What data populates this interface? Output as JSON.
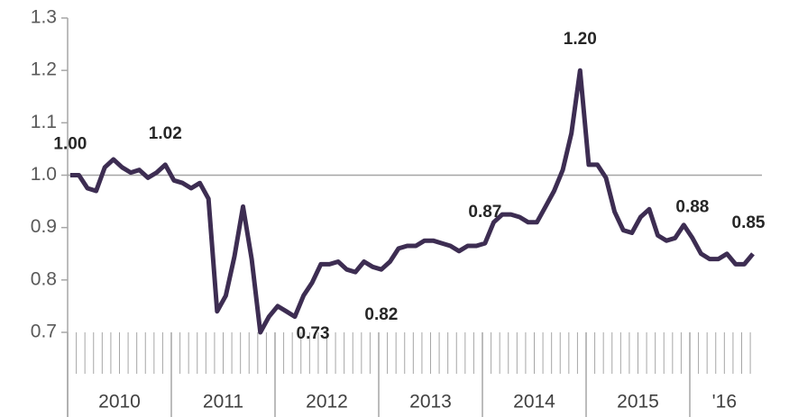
{
  "chart_data": {
    "type": "line",
    "color": "#3d2d52",
    "categories": [
      "2010",
      "2011",
      "2012",
      "2013",
      "2014",
      "2015",
      "'16"
    ],
    "values": [
      [
        1.0,
        1.0,
        0.975,
        0.97,
        1.015,
        1.03,
        1.015,
        1.005,
        1.01,
        0.995,
        1.005,
        1.02
      ],
      [
        0.99,
        0.985,
        0.975,
        0.985,
        0.955,
        0.74,
        0.77,
        0.845,
        0.94,
        0.84,
        0.7,
        0.73
      ],
      [
        0.75,
        0.74,
        0.73,
        0.77,
        0.795,
        0.83,
        0.83,
        0.835,
        0.82,
        0.815,
        0.835,
        0.825
      ],
      [
        0.82,
        0.835,
        0.86,
        0.865,
        0.865,
        0.875,
        0.875,
        0.87,
        0.865,
        0.855,
        0.865,
        0.865
      ],
      [
        0.87,
        0.91,
        0.925,
        0.925,
        0.92,
        0.91,
        0.91,
        0.94,
        0.97,
        1.01,
        1.08,
        1.2
      ],
      [
        1.02,
        1.02,
        0.995,
        0.93,
        0.895,
        0.89,
        0.92,
        0.935,
        0.885,
        0.875,
        0.88,
        0.905
      ],
      [
        0.88,
        0.85,
        0.84,
        0.84,
        0.85,
        0.83,
        0.83,
        0.85
      ]
    ],
    "value_labels": [
      [
        "1.00",
        null,
        null,
        null,
        null,
        null,
        null,
        null,
        null,
        null,
        null,
        "1.02"
      ],
      [
        null,
        null,
        null,
        null,
        null,
        null,
        null,
        null,
        null,
        null,
        null,
        null
      ],
      [
        null,
        null,
        "0.73",
        null,
        null,
        null,
        null,
        null,
        null,
        null,
        null,
        null
      ],
      [
        "0.82",
        null,
        null,
        null,
        null,
        null,
        null,
        null,
        null,
        null,
        null,
        null
      ],
      [
        "0.87",
        null,
        null,
        null,
        null,
        null,
        null,
        null,
        null,
        null,
        null,
        "1.20"
      ],
      [
        null,
        null,
        null,
        null,
        null,
        null,
        null,
        null,
        null,
        null,
        null,
        null
      ],
      [
        "0.88",
        null,
        null,
        null,
        null,
        null,
        null,
        "0.85"
      ]
    ],
    "ylim": [
      0.7,
      1.3
    ],
    "yticks": [
      0.7,
      0.8,
      0.9,
      {
        "value": 1,
        "label": "1.0"
      },
      1.1,
      1.2,
      1.3
    ],
    "reference_y": 1
  }
}
